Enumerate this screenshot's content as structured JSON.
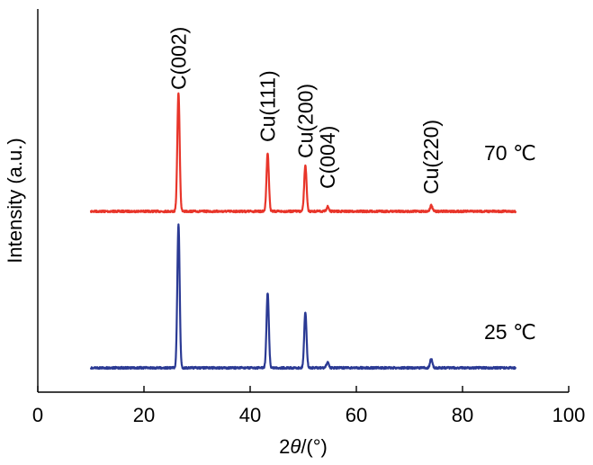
{
  "chart_data": {
    "type": "line",
    "xlabel_prefix": "2",
    "xlabel_symbol": "θ",
    "xlabel_suffix": "/(°)",
    "ylabel": "Intensity (a.u.)",
    "xlim": [
      0,
      100
    ],
    "xticks": [
      0,
      20,
      40,
      60,
      80,
      100
    ],
    "grid": false,
    "series": [
      {
        "name": "70 ℃",
        "color": "#e8352a",
        "x_range": [
          10,
          90
        ],
        "peaks": [
          {
            "x": 26.5,
            "intensity": 1.0
          },
          {
            "x": 43.3,
            "intensity": 0.49
          },
          {
            "x": 50.4,
            "intensity": 0.39
          },
          {
            "x": 54.6,
            "intensity": 0.04
          },
          {
            "x": 74.1,
            "intensity": 0.05
          }
        ]
      },
      {
        "name": "25 ℃",
        "color": "#2b3a94",
        "x_range": [
          10,
          90
        ],
        "peaks": [
          {
            "x": 26.5,
            "intensity": 1.0
          },
          {
            "x": 43.3,
            "intensity": 0.52
          },
          {
            "x": 50.4,
            "intensity": 0.39
          },
          {
            "x": 54.6,
            "intensity": 0.04
          },
          {
            "x": 74.1,
            "intensity": 0.06
          }
        ]
      }
    ],
    "annotations": [
      {
        "text": "C(002)",
        "x": 26.5
      },
      {
        "text": "Cu(111)",
        "x": 43.3
      },
      {
        "text": "Cu(200)",
        "x": 50.4
      },
      {
        "text": "C(004)",
        "x": 54.6
      },
      {
        "text": "Cu(220)",
        "x": 74.1
      }
    ]
  }
}
